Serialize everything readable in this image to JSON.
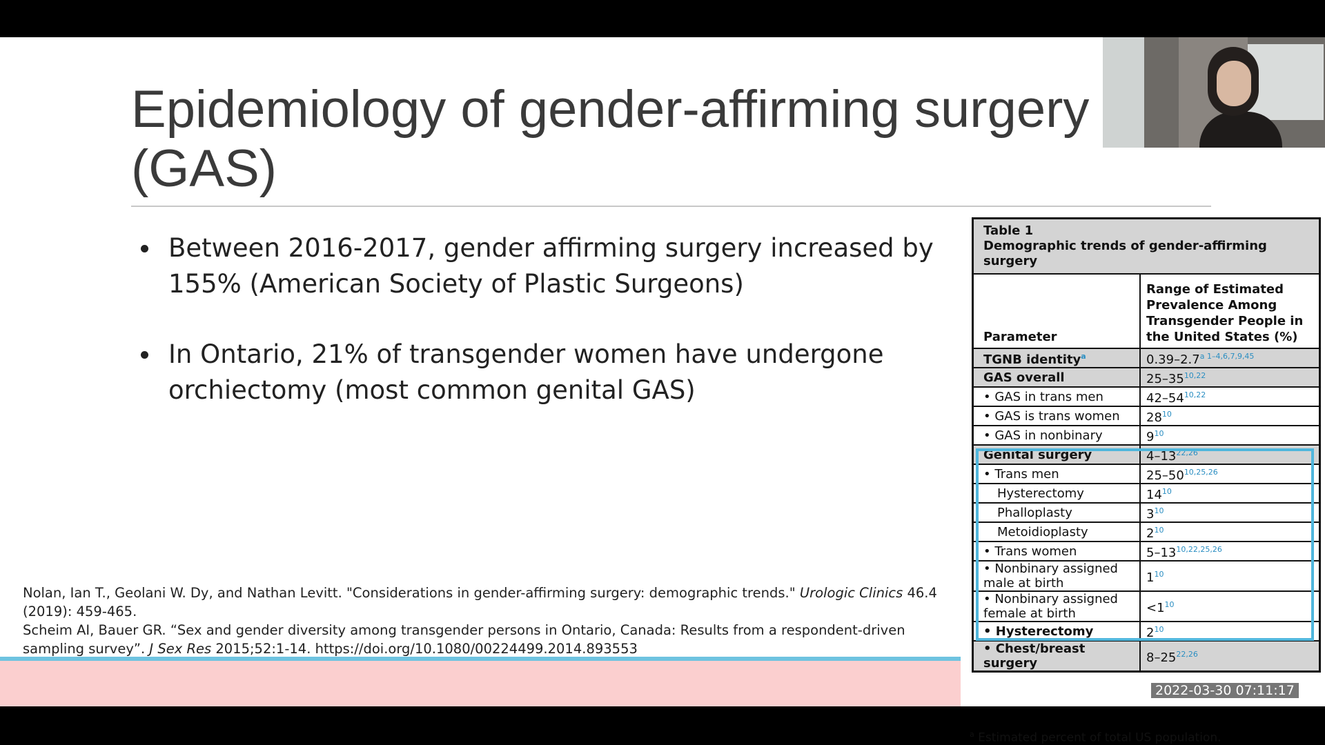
{
  "slide": {
    "title": "Epidemiology of gender-affirming surgery (GAS)",
    "bullets": [
      "Between 2016-2017, gender affirming surgery increased by 155% (American Society of Plastic Surgeons)",
      "In Ontario, 21% of transgender women have undergone orchiectomy (most common genital GAS)"
    ],
    "references": [
      [
        "Nolan, Ian T., Geolani W. Dy, and Nathan Levitt. \"Considerations in gender-affirming surgery: demographic trends.\" ",
        "Urologic Clinics",
        " 46.4 (2019): 459-465."
      ],
      [
        "Scheim AI, Bauer GR. “Sex and gender diversity among transgender persons in Ontario, Canada: Results from a respondent-driven sampling survey”. ",
        "J Sex Res",
        " 2015;52:1-14. https://doi.org/10.1080/00224499.2014.893553"
      ]
    ]
  },
  "table": {
    "label": "Table 1",
    "caption": "Demographic trends of gender-affirming surgery",
    "headers": [
      "Parameter",
      "Range of Estimated Prevalence Among Transgender People in the United States (%)"
    ],
    "rows": [
      {
        "parameter": "TGNB identity",
        "marker": "a",
        "value": "0.39–2.7",
        "note": "a 1–4,6,7,9,45",
        "bold": true,
        "shaded": true
      },
      {
        "parameter": "GAS overall",
        "value": "25–35",
        "note": "10,22",
        "bold": true,
        "shaded": true
      },
      {
        "parameter": "• GAS in trans men",
        "value": "42–54",
        "note": "10,22"
      },
      {
        "parameter": "• GAS is trans women",
        "value": "28",
        "note": "10"
      },
      {
        "parameter": "• GAS in nonbinary",
        "value": "9",
        "note": "10"
      },
      {
        "parameter": "Genital surgery",
        "value": "4–13",
        "note": "22,26",
        "bold": true,
        "shaded": true
      },
      {
        "parameter": "• Trans men",
        "value": "25–50",
        "note": "10,25,26"
      },
      {
        "parameter": "Hysterectomy",
        "value": "14",
        "note": "10",
        "indent": true
      },
      {
        "parameter": "Phalloplasty",
        "value": "3",
        "note": "10",
        "indent": true
      },
      {
        "parameter": "Metoidioplasty",
        "value": "2",
        "note": "10",
        "indent": true
      },
      {
        "parameter": "• Trans women",
        "value": "5–13",
        "note": "10,22,25,26"
      },
      {
        "parameter": "• Nonbinary assigned male at birth",
        "value": "1",
        "note": "10"
      },
      {
        "parameter": "• Nonbinary assigned female at birth",
        "value": "<1",
        "note": "10"
      },
      {
        "parameter": "• Hysterectomy",
        "value": "2",
        "note": "10",
        "bold": true
      },
      {
        "parameter": "• Chest/breast surgery",
        "value": "8–25",
        "note": "22,26",
        "bold": true,
        "shaded": true
      }
    ],
    "footnote": {
      "marker": "a",
      "text": "Estimated percent of total US population."
    }
  },
  "timestamp": "2022-03-30 07:11:17"
}
